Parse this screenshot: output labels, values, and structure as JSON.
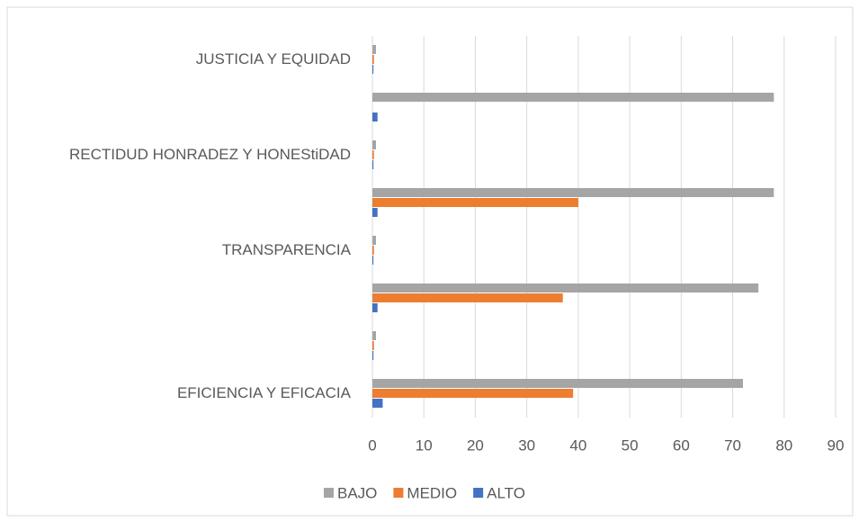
{
  "chart_data": {
    "type": "hbar",
    "categories": [
      "EFICIENCIA Y EFICACIA",
      null,
      null,
      "TRANSPARENCIA",
      null,
      "RECTIDUD HONRADEZ Y HONEStiDAD",
      null,
      "JUSTICIA Y EQUIDAD"
    ],
    "series": [
      {
        "name": "BAJO",
        "color": "#a5a5a5",
        "values": [
          72,
          0.7,
          75,
          0.7,
          78,
          0.7,
          78,
          0.7
        ]
      },
      {
        "name": "MEDIO",
        "color": "#ed7d31",
        "values": [
          39,
          0.3,
          37,
          0.3,
          40,
          0.3,
          0,
          0.3
        ]
      },
      {
        "name": "ALTO",
        "color": "#4472c4",
        "values": [
          2,
          0.2,
          1,
          0.2,
          1,
          0.2,
          1,
          0.2
        ]
      }
    ],
    "xlim": [
      0,
      90
    ],
    "xticks": [
      0,
      10,
      20,
      30,
      40,
      50,
      60,
      70,
      80,
      90
    ],
    "grid": true,
    "legend": "bottom"
  }
}
